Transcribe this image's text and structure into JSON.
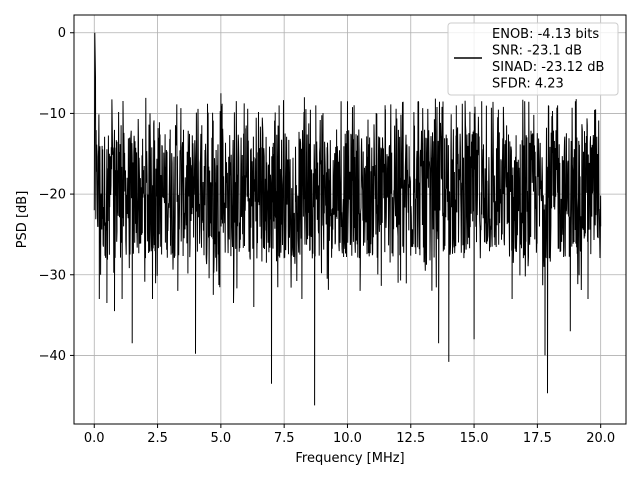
{
  "chart_data": {
    "type": "line",
    "title": "",
    "xlabel": "Frequency [MHz]",
    "ylabel": "PSD [dB]",
    "xlim": [
      -0.8,
      21.0
    ],
    "ylim": [
      -48.5,
      2.2
    ],
    "x_ticks": [
      0.0,
      2.5,
      5.0,
      7.5,
      10.0,
      12.5,
      15.0,
      17.5,
      20.0
    ],
    "x_tick_labels": [
      "0.0",
      "2.5",
      "5.0",
      "7.5",
      "10.0",
      "12.5",
      "15.0",
      "17.5",
      "20.0"
    ],
    "y_ticks": [
      0,
      -10,
      -20,
      -30,
      -40
    ],
    "y_tick_labels": [
      "0",
      "−10",
      "−20",
      "−30",
      "−40"
    ],
    "grid": true,
    "legend_position": "top-right",
    "legend_entries": [
      "ENOB: -4.13 bits",
      "SNR: -23.1 dB",
      "SINAD: -23.12 dB",
      "SFDR: 4.23"
    ],
    "series": [
      {
        "color": "#000000",
        "description": "dense noise-floor PSD trace from 0 to 20 MHz, mostly between -10 and -30 dB",
        "x": [
          0.0,
          0.02,
          0.05,
          0.2,
          0.25,
          0.5,
          0.6,
          0.8,
          0.9,
          1.1,
          1.5,
          2.2,
          2.3,
          3.0,
          3.3,
          4.0,
          4.1,
          4.7,
          5.0,
          5.5,
          6.0,
          6.3,
          6.8,
          7.0,
          7.3,
          8.2,
          8.3,
          8.7,
          8.75,
          9.2,
          10.0,
          10.5,
          11.5,
          12.0,
          12.8,
          13.6,
          14.0,
          14.3,
          15.0,
          15.3,
          16.5,
          17.0,
          17.8,
          17.9,
          18.3,
          18.8,
          19.0,
          19.5,
          19.8,
          20.0
        ],
        "y": [
          -22.0,
          0.0,
          -5.5,
          -33.0,
          -30.0,
          -33.5,
          -15.0,
          -34.5,
          -13.5,
          -33.0,
          -38.5,
          -10.0,
          -33.0,
          -12.0,
          -32.0,
          -39.8,
          -11.0,
          -32.5,
          -7.5,
          -33.5,
          -11.5,
          -34.0,
          -28.5,
          -43.5,
          -9.0,
          -33.0,
          -8.0,
          -46.2,
          -9.0,
          -30.5,
          -8.5,
          -32.0,
          -9.5,
          -31.0,
          -8.5,
          -38.5,
          -40.8,
          -9.0,
          -38.0,
          -8.5,
          -33.0,
          -8.5,
          -40.0,
          -44.7,
          -9.0,
          -37.0,
          -8.5,
          -33.0,
          -9.5,
          -24.0
        ]
      }
    ]
  }
}
